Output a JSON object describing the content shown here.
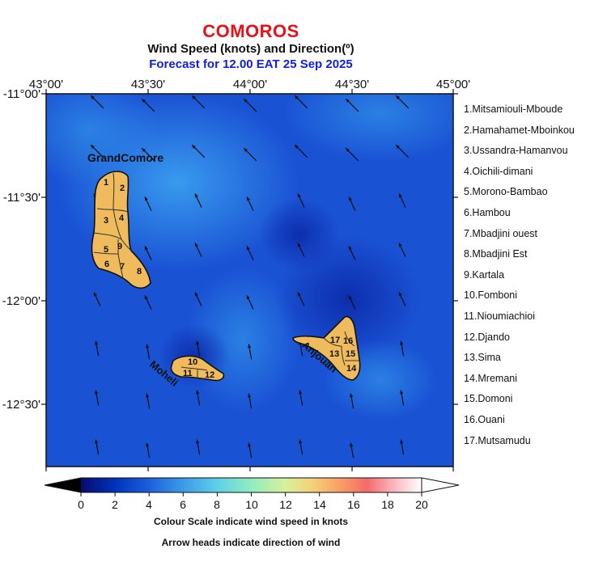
{
  "header": {
    "title": "COMOROS",
    "subtitle": "Wind Speed (knots) and Direction(º)",
    "forecast": "Forecast for  12.00 EAT 25 Sep 2025"
  },
  "axes": {
    "longitude_labels": [
      "43°00'",
      "43°30'",
      "44°00'",
      "44°30'",
      "45°00'"
    ],
    "latitude_labels": [
      "-11°00'",
      "-11°30'",
      "-12°00'",
      "-12°30'"
    ]
  },
  "islands": {
    "grand_comore": "GrandComore",
    "moheli": "Moheli",
    "anjouan": "Anjouan"
  },
  "region_numbers": {
    "grand_comore": [
      "1",
      "2",
      "3",
      "4",
      "5",
      "9",
      "6",
      "7",
      "8"
    ],
    "moheli": [
      "10",
      "11",
      "12"
    ],
    "anjouan": [
      "17",
      "16",
      "13",
      "15",
      "14"
    ]
  },
  "legend": {
    "items": [
      "1.Mitsamiouli-Mboude",
      "2.Hamahamet-Mboinkou",
      "3.Ussandra-Hamanvou",
      "4.Oichili-dimani",
      "5.Morono-Bambao",
      "6.Hambou",
      "7.Mbadjini ouest",
      "8.Mbadjini Est",
      "9.Kartala",
      "10.Fomboni",
      "11.Nioumiachioi",
      "12.Djando",
      "13.Sima",
      "14.Mremani",
      "15.Domoni",
      "16.Ouani",
      "17.Mutsamudu"
    ]
  },
  "colorbar": {
    "min": 0,
    "max": 20,
    "tick_labels": [
      "0",
      "2",
      "4",
      "6",
      "8",
      "10",
      "12",
      "14",
      "16",
      "18",
      "20"
    ],
    "colors": [
      "#0a0a6e",
      "#0033bb",
      "#2e74e8",
      "#4fb8f0",
      "#7fe8c8",
      "#c6f09a",
      "#f5d77a",
      "#f7a064",
      "#f56a6a",
      "#f9b8c0",
      "#ffffff"
    ],
    "caption1": "Colour Scale indicate wind speed in knots",
    "caption2": "Arrow heads indicate direction of wind"
  },
  "wind_field": {
    "description_units": "knots",
    "rows": [
      {
        "dir": "nw",
        "speed": 4
      },
      {
        "dir": "nw",
        "speed": 4
      },
      {
        "dir": "nnw",
        "speed": 3
      },
      {
        "dir": "nnw",
        "speed": 3
      },
      {
        "dir": "nnw",
        "speed": 3
      },
      {
        "dir": "n",
        "speed": 3
      },
      {
        "dir": "n",
        "speed": 3
      },
      {
        "dir": "n",
        "speed": 3
      }
    ]
  }
}
